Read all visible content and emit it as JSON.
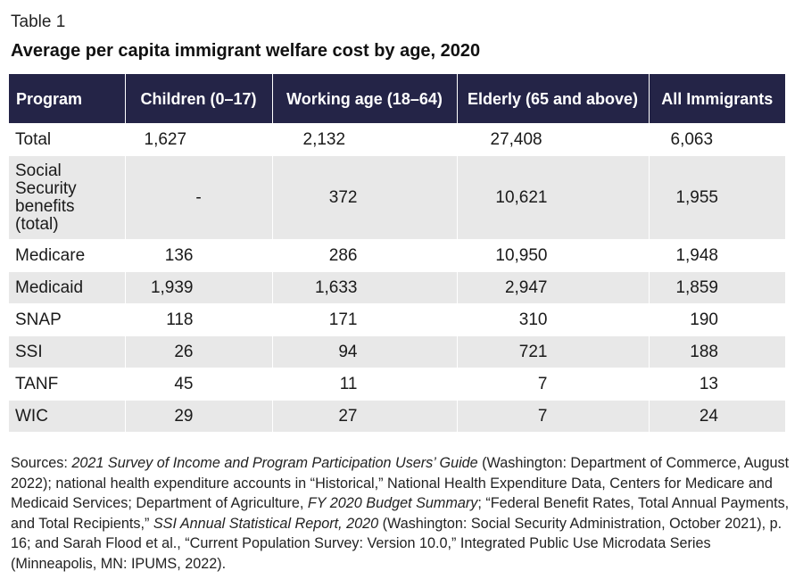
{
  "label": "Table 1",
  "title": "Average per capita immigrant welfare cost by age, 2020",
  "table": {
    "headers": [
      "Program",
      "Children (0–17)",
      "Working age (18–64)",
      "Elderly (65 and above)",
      "All Immigrants"
    ],
    "rows": [
      [
        "Total",
        "1,627",
        "2,132",
        "27,408",
        "6,063"
      ],
      [
        "Social Security benefits (total)",
        "-",
        "372",
        "10,621",
        "1,955"
      ],
      [
        "Medicare",
        "136",
        "286",
        "10,950",
        "1,948"
      ],
      [
        "Medicaid",
        "1,939",
        "1,633",
        "2,947",
        "1,859"
      ],
      [
        "SNAP",
        "118",
        "171",
        "310",
        "190"
      ],
      [
        "SSI",
        "26",
        "94",
        "721",
        "188"
      ],
      [
        "TANF",
        "45",
        "11",
        "7",
        "13"
      ],
      [
        "WIC",
        "29",
        "27",
        "7",
        "24"
      ]
    ]
  },
  "sources": {
    "s0": "Sources: ",
    "s1": "2021 Survey of Income and Program Participation Users’ Guide",
    "s2": " (Washington: Department of Commerce, August 2022); national health expenditure accounts in “Historical,” National Health Expenditure Data, Centers for Medicare and Medicaid Services; Department of Agriculture, ",
    "s3": "FY 2020 Budget Summary",
    "s4": "; “Federal Benefit Rates, Total Annual Payments, and Total Recipients,” ",
    "s5": "SSI Annual Statistical Report, 2020",
    "s6": " (Washington: Social Security Administration, October 2021), p. 16; and Sarah Flood et al., “Current Population Survey: Version 10.0,” Integrated Public Use Microdata Series (Minneapolis, MN: IPUMS, 2022)."
  }
}
